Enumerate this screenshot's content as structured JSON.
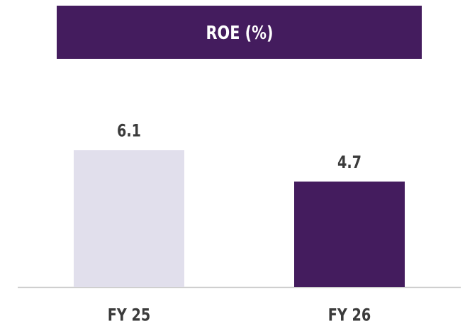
{
  "chart_data": {
    "type": "bar",
    "title": "ROE (%)",
    "categories": [
      "FY 25",
      "FY 26"
    ],
    "values": [
      6.1,
      4.7
    ],
    "colors": [
      "#e1dfec",
      "#441c5e"
    ]
  }
}
